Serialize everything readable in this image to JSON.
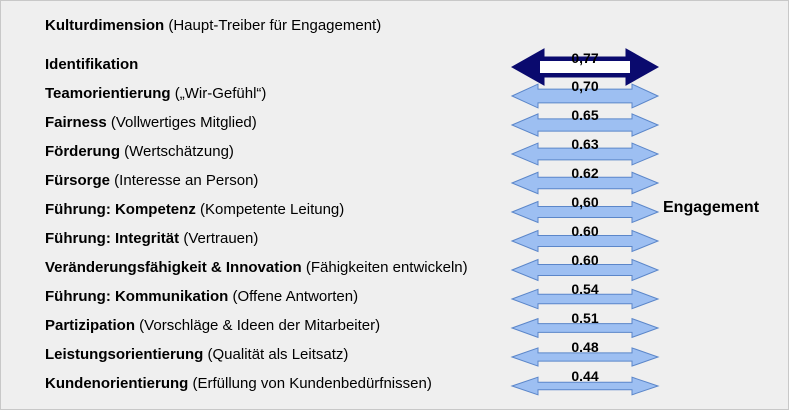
{
  "header": {
    "title_bold": "Kulturdimension",
    "title_rest": " (Haupt-Treiber für Engagement)"
  },
  "outcome_label": "Engagement",
  "colors": {
    "top_arrow": "#0a0a6e",
    "arrow_fill": "#9dbff2",
    "arrow_stroke": "#5b86c9"
  },
  "chart_data": {
    "type": "bar",
    "title": "Kulturdimension (Haupt-Treiber für Engagement)",
    "categories": [
      "Identifikation",
      "Teamorientierung („Wir-Gefühl“)",
      "Fairness (Vollwertiges Mitglied)",
      "Förderung (Wertschätzung)",
      "Fürsorge (Interesse an Person)",
      "Führung: Kompetenz (Kompetente Leitung)",
      "Führung: Integrität (Vertrauen)",
      "Veränderungsfähigkeit & Innovation (Fähigkeiten entwickeln)",
      "Führung: Kommunikation (Offene Antworten)",
      "Partizipation (Vorschläge & Ideen der Mitarbeiter)",
      "Leistungsorientierung (Qualität als Leitsatz)",
      "Kundenorientierung (Erfüllung von Kundenbedürfnissen)"
    ],
    "values": [
      0.77,
      0.7,
      0.65,
      0.63,
      0.62,
      0.6,
      0.6,
      0.6,
      0.54,
      0.51,
      0.48,
      0.44
    ],
    "value_labels": [
      "0,77",
      "0,70",
      "0.65",
      "0.63",
      "0.62",
      "0,60",
      "0.60",
      "0.60",
      "0.54",
      "0.51",
      "0.48",
      "0.44"
    ],
    "target": "Engagement"
  },
  "rows": [
    {
      "bold": "Identifikation",
      "rest": ""
    },
    {
      "bold": "Teamorientierung",
      "rest": " („Wir-Gefühl“)"
    },
    {
      "bold": "Fairness",
      "rest": " (Vollwertiges Mitglied)"
    },
    {
      "bold": "Förderung",
      "rest": " (Wertschätzung)"
    },
    {
      "bold": "Fürsorge",
      "rest": " (Interesse an Person)"
    },
    {
      "bold": "Führung: Kompetenz",
      "rest": " (Kompetente Leitung)"
    },
    {
      "bold": "Führung: Integrität",
      "rest": " (Vertrauen)"
    },
    {
      "bold": "Veränderungsfähigkeit & Innovation",
      "rest": " (Fähigkeiten entwickeln)"
    },
    {
      "bold": "Führung: Kommunikation",
      "rest": " (Offene Antworten)"
    },
    {
      "bold": "Partizipation",
      "rest": " (Vorschläge & Ideen der Mitarbeiter)"
    },
    {
      "bold": "Leistungsorientierung",
      "rest": " (Qualität als Leitsatz)"
    },
    {
      "bold": "Kundenorientierung",
      "rest": " (Erfüllung von Kundenbedürfnissen)"
    }
  ]
}
